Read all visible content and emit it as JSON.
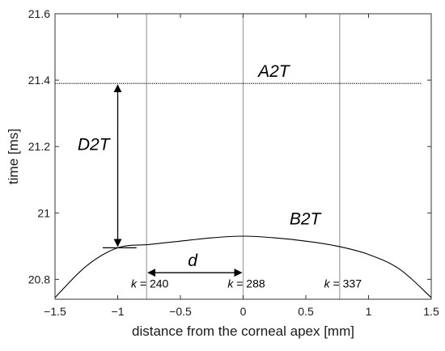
{
  "chart_data": {
    "type": "line",
    "title": "",
    "xlabel": "distance from the corneal apex [mm]",
    "ylabel": "time [ms]",
    "xlim": [
      -1.5,
      1.5
    ],
    "ylim": [
      20.74,
      21.6
    ],
    "xticks": [
      -1.5,
      -1,
      -0.5,
      0,
      0.5,
      1,
      1.5
    ],
    "xtick_labels": [
      "−1.5",
      "−1",
      "−0.5",
      "0",
      "0.5",
      "1",
      "1.5"
    ],
    "yticks": [
      20.8,
      21,
      21.2,
      21.4,
      21.6
    ],
    "ytick_labels": [
      "20.8",
      "21",
      "21.2",
      "21.4",
      "21.6"
    ],
    "grid": false,
    "series": [
      {
        "name": "B2T",
        "style": "solid",
        "color": "#000000",
        "x": [
          -1.5,
          -1.25,
          -1.0,
          -0.75,
          -0.5,
          -0.25,
          0,
          0.25,
          0.5,
          0.75,
          1.0,
          1.25,
          1.5
        ],
        "y": [
          20.745,
          20.84,
          20.895,
          20.905,
          20.915,
          20.925,
          20.93,
          20.925,
          20.915,
          20.9,
          20.875,
          20.83,
          20.745
        ]
      },
      {
        "name": "A2T",
        "style": "dotted",
        "color": "#000000",
        "x": [
          -1.5,
          1.42
        ],
        "y": [
          21.39,
          21.39
        ]
      }
    ],
    "vertical_lines": [
      {
        "x": -0.77,
        "label": "k = 240"
      },
      {
        "x": 0,
        "label": "k = 288"
      },
      {
        "x": 0.77,
        "label": "k = 337"
      }
    ],
    "annotations": {
      "A2T": "A2T",
      "B2T": "B2T",
      "D2T": "D2T",
      "d": "d",
      "d2t_arrow": {
        "x": -1.0,
        "y_from": 21.39,
        "y_to": 20.895
      },
      "d2t_marker": {
        "x_from": -1.12,
        "x_to": -0.85,
        "y": 20.895
      },
      "d_arrow": {
        "x_from": -0.77,
        "x_to": 0,
        "y": 20.82
      }
    }
  }
}
